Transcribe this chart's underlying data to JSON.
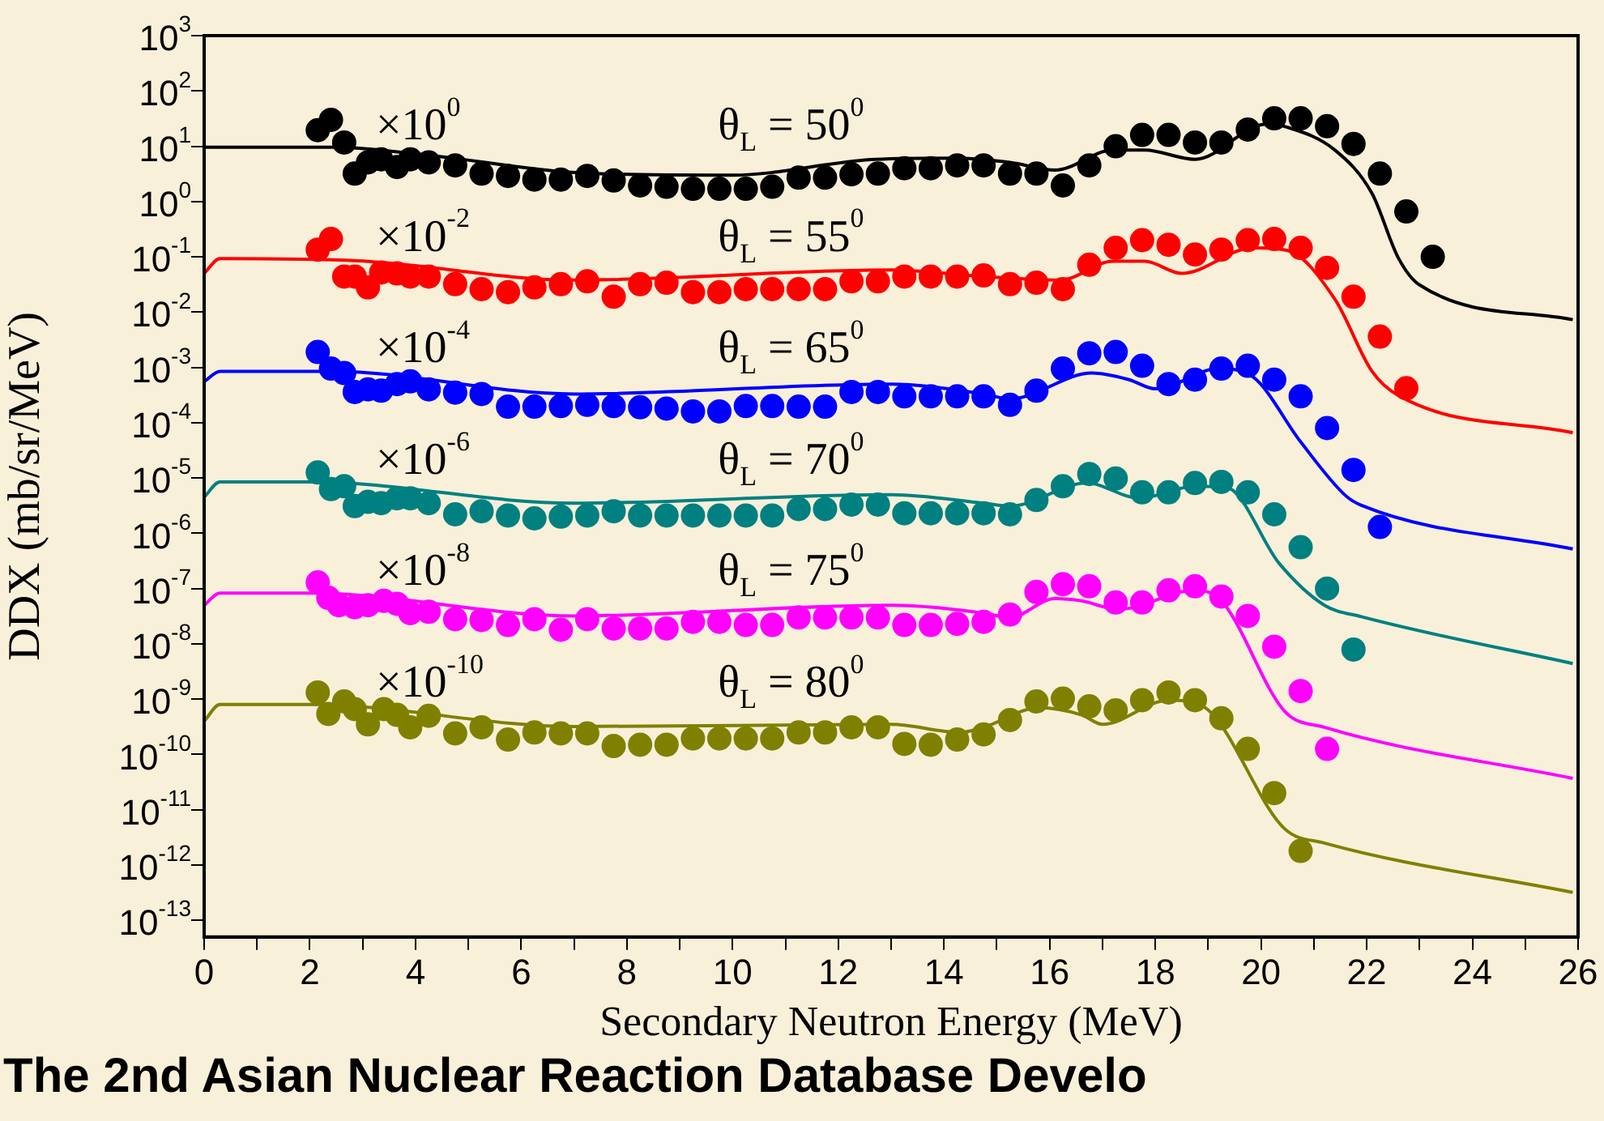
{
  "chart_data": {
    "type": "scatter",
    "xlabel": "Secondary Neutron Energy (MeV)",
    "ylabel": "DDX (mb/sr/MeV)",
    "xlim": [
      0,
      26
    ],
    "xticks": [
      0,
      {
        "value": 1,
        "label": null
      },
      2,
      {
        "value": 3,
        "label": null
      },
      4,
      {
        "value": 5,
        "label": null
      },
      6,
      {
        "value": 7,
        "label": null
      },
      8,
      {
        "value": 9,
        "label": null
      },
      10,
      {
        "value": 11,
        "label": null
      },
      12,
      {
        "value": 13,
        "label": null
      },
      14,
      {
        "value": 15,
        "label": null
      },
      16,
      {
        "value": 17,
        "label": null
      },
      18,
      {
        "value": 19,
        "label": null
      },
      20,
      {
        "value": 21,
        "label": null
      },
      22,
      {
        "value": 23,
        "label": null
      },
      24,
      {
        "value": 25,
        "label": null
      },
      26
    ],
    "ylim": [
      5e-14,
      1000
    ],
    "log": "y",
    "yticks": [
      {
        "value": 1000,
        "label": "10$^{3}$"
      },
      {
        "value": 100,
        "label": "10$^{2}$"
      },
      {
        "value": 10,
        "label": "10$^{1}$"
      },
      {
        "value": 1,
        "label": "10$^{0}$"
      },
      {
        "value": 0.1,
        "label": "10$^{-1}$"
      },
      {
        "value": 0.01,
        "label": "10$^{-2}$"
      },
      {
        "value": 0.001,
        "label": "10$^{-3}$"
      },
      {
        "value": 0.0001,
        "label": "10$^{-4}$"
      },
      {
        "value": 1e-05,
        "label": "10$^{-5}$"
      },
      {
        "value": 1e-06,
        "label": "10$^{-6}$"
      },
      {
        "value": 1e-07,
        "label": "10$^{-7}$"
      },
      {
        "value": 1e-08,
        "label": "10$^{-8}$"
      },
      {
        "value": 1e-09,
        "label": "10$^{-9}$"
      },
      {
        "value": 1e-10,
        "label": "10$^{-10}$"
      },
      {
        "value": 1e-11,
        "label": "10$^{-11}$"
      },
      {
        "value": 1e-12,
        "label": "10$^{-12}$"
      },
      {
        "value": 1e-13,
        "label": "10$^{-13}$"
      }
    ],
    "grid": false,
    "legend": false,
    "marker": "circle",
    "line_style": "solid",
    "series": [
      {
        "type": "line",
        "marker": "none",
        "color": "#000000",
        "x": [
          0,
          2.5,
          3.9,
          7.4,
          10,
          12.7,
          14.2,
          15.25,
          16.1,
          17.2,
          17.8,
          18.75,
          20.1,
          20.5,
          21.4,
          22.1,
          22.6,
          23,
          25.9
        ],
        "values": [
          9.6,
          9.6,
          7.5,
          3.2,
          3.0,
          5.8,
          6.1,
          5.1,
          3.7,
          8.5,
          8.5,
          5.8,
          25,
          22,
          8.5,
          1.4,
          0.095,
          0.031,
          0.0073
        ]
      },
      {
        "type": "line",
        "marker": "none",
        "color": "#ff0000",
        "x": [
          0,
          0.3,
          2.9,
          7.0,
          13.0,
          14.75,
          16.2,
          17.2,
          17.8,
          18.5,
          19.85,
          20.5,
          21.4,
          22.1,
          22.6,
          25.9
        ],
        "values": [
          0.05,
          0.093,
          0.085,
          0.038,
          0.058,
          0.044,
          0.038,
          0.083,
          0.083,
          0.05,
          0.145,
          0.13,
          0.017,
          0.00085,
          0.00031,
          6.6e-05
        ]
      },
      {
        "type": "line",
        "marker": "none",
        "color": "#0000ff",
        "x": [
          0,
          0.3,
          2.4,
          7.0,
          13.0,
          14.75,
          15.25,
          16.8,
          17.5,
          18.0,
          19.2,
          19.85,
          20.75,
          21.6,
          21.9,
          25.9
        ],
        "values": [
          0.00055,
          0.00085,
          0.00085,
          0.00033,
          0.0005,
          0.00033,
          0.00027,
          0.00079,
          0.0006,
          0.00041,
          0.00095,
          0.00067,
          4.5e-05,
          4.8e-06,
          3.2e-06,
          5.2e-07
        ]
      },
      {
        "type": "line",
        "marker": "none",
        "color": "#008080",
        "x": [
          0,
          0.3,
          2.0,
          7.0,
          13.0,
          14.75,
          15.25,
          16.7,
          17.7,
          18.75,
          19.35,
          20.35,
          21.2,
          21.9,
          25.9
        ],
        "values": [
          4.5e-06,
          8.5e-06,
          8.5e-06,
          3.5e-06,
          5e-06,
          3.5e-06,
          3.1e-06,
          8.1e-06,
          4.3e-06,
          7.1e-06,
          6.7e-06,
          2.8e-07,
          5e-08,
          3.1e-08,
          4.4e-09
        ]
      },
      {
        "type": "line",
        "marker": "none",
        "color": "#ff00ff",
        "x": [
          0,
          0.3,
          2.0,
          7.0,
          13.0,
          14.75,
          15.25,
          16.1,
          16.6,
          17.3,
          18.75,
          19.25,
          20.45,
          21.2,
          25.9
        ],
        "values": [
          5e-08,
          8.3e-08,
          8.3e-08,
          3.2e-08,
          5e-08,
          3.6e-08,
          3e-08,
          6.6e-08,
          6e-08,
          4.2e-08,
          9.3e-08,
          6e-08,
          6e-10,
          3.1e-10,
          3.7e-11
        ]
      },
      {
        "type": "line",
        "marker": "none",
        "color": "#808000",
        "x": [
          0,
          0.3,
          2.0,
          7.0,
          13.0,
          14.3,
          14.75,
          15.8,
          16.6,
          17.0,
          18.25,
          18.9,
          20.45,
          21.2,
          25.9
        ],
        "values": [
          4e-10,
          8e-10,
          8e-10,
          3.2e-10,
          3.5e-10,
          2.5e-10,
          3.1e-10,
          7e-10,
          5.2e-10,
          3.5e-10,
          9.6e-10,
          7.4e-10,
          4.5e-12,
          2.5e-12,
          3.2e-13
        ]
      },
      {
        "color": "#000000",
        "x": [
          2.15,
          2.4,
          2.65,
          2.85,
          3.1,
          3.35,
          3.65,
          3.9,
          4.25,
          4.75,
          5.25,
          5.75,
          6.25,
          6.75,
          7.25,
          7.75,
          8.25,
          8.75,
          9.25,
          9.75,
          10.25,
          10.75,
          11.25,
          11.75,
          12.25,
          12.75,
          13.25,
          13.75,
          14.25,
          14.75,
          15.25,
          15.75,
          16.25,
          16.75,
          17.25,
          17.75,
          18.25,
          18.75,
          19.25,
          19.75,
          20.25,
          20.75,
          21.25,
          21.75,
          22.25,
          22.75,
          23.25
        ],
        "values": [
          19.5,
          30,
          11.7,
          3.2,
          5.1,
          5.8,
          4.2,
          5.8,
          5.1,
          4.5,
          3.2,
          2.9,
          2.5,
          2.5,
          2.9,
          2.4,
          1.95,
          1.85,
          1.7,
          1.7,
          1.7,
          1.85,
          2.7,
          2.7,
          3.1,
          3.2,
          4.0,
          4.0,
          4.5,
          4.5,
          3.2,
          3.2,
          1.95,
          4.5,
          10,
          16,
          16,
          11.7,
          11.7,
          20,
          32,
          32,
          23,
          11,
          3.2,
          0.66,
          0.1
        ]
      },
      {
        "color": "#ff0000",
        "x": [
          2.15,
          2.4,
          2.65,
          2.85,
          3.1,
          3.35,
          3.65,
          3.9,
          4.25,
          4.75,
          5.25,
          5.75,
          6.25,
          6.75,
          7.25,
          7.75,
          8.25,
          8.75,
          9.25,
          9.75,
          10.25,
          10.75,
          11.25,
          11.75,
          12.25,
          12.75,
          13.25,
          13.75,
          14.25,
          14.75,
          15.25,
          15.75,
          16.25,
          16.75,
          17.25,
          17.75,
          18.25,
          18.75,
          19.25,
          19.75,
          20.25,
          20.75,
          21.25,
          21.75,
          22.25,
          22.75
        ],
        "values": [
          0.135,
          0.21,
          0.044,
          0.044,
          0.028,
          0.052,
          0.05,
          0.044,
          0.044,
          0.032,
          0.026,
          0.023,
          0.028,
          0.032,
          0.036,
          0.019,
          0.032,
          0.034,
          0.023,
          0.023,
          0.026,
          0.026,
          0.026,
          0.026,
          0.036,
          0.036,
          0.044,
          0.044,
          0.044,
          0.046,
          0.032,
          0.034,
          0.026,
          0.072,
          0.145,
          0.2,
          0.165,
          0.11,
          0.135,
          0.2,
          0.21,
          0.145,
          0.063,
          0.019,
          0.0036,
          0.00042
        ]
      },
      {
        "color": "#0000ff",
        "x": [
          2.15,
          2.4,
          2.65,
          2.85,
          3.1,
          3.35,
          3.65,
          3.9,
          4.25,
          4.75,
          5.25,
          5.75,
          6.25,
          6.75,
          7.25,
          7.75,
          8.25,
          8.75,
          9.25,
          9.75,
          10.25,
          10.75,
          11.25,
          11.75,
          12.25,
          12.75,
          13.25,
          13.75,
          14.25,
          14.75,
          15.25,
          15.75,
          16.25,
          16.75,
          17.25,
          17.75,
          18.25,
          18.75,
          19.25,
          19.75,
          20.25,
          20.75,
          21.25,
          21.75,
          22.25
        ],
        "values": [
          0.0019,
          0.00095,
          0.00079,
          0.00036,
          0.0004,
          0.00038,
          0.0005,
          0.00056,
          0.0004,
          0.00035,
          0.00033,
          0.000195,
          0.000195,
          0.0002,
          0.00021,
          0.0002,
          0.00019,
          0.00018,
          0.00016,
          0.00016,
          0.0002,
          0.0002,
          0.000195,
          0.000195,
          0.00036,
          0.00036,
          0.0003,
          0.0003,
          0.0003,
          0.0003,
          0.00021,
          0.00038,
          0.00095,
          0.0018,
          0.0019,
          0.00107,
          0.0005,
          0.0006,
          0.00095,
          0.00107,
          0.0006,
          0.0003,
          8e-05,
          1.4e-05,
          1.3e-06
        ]
      },
      {
        "color": "#008080",
        "x": [
          2.15,
          2.4,
          2.65,
          2.85,
          3.1,
          3.35,
          3.65,
          3.9,
          4.25,
          4.75,
          5.25,
          5.75,
          6.25,
          6.75,
          7.25,
          7.75,
          8.25,
          8.75,
          9.25,
          9.75,
          10.25,
          10.75,
          11.25,
          11.75,
          12.25,
          12.75,
          13.25,
          13.75,
          14.25,
          14.75,
          15.25,
          15.75,
          16.25,
          16.75,
          17.25,
          17.75,
          18.25,
          18.75,
          19.25,
          19.75,
          20.25,
          20.75,
          21.25,
          21.75
        ],
        "values": [
          1.26e-05,
          6.3e-06,
          7.1e-06,
          3.1e-06,
          3.7e-06,
          3.5e-06,
          4.3e-06,
          4.3e-06,
          3.5e-06,
          2.2e-06,
          2.5e-06,
          2.1e-06,
          1.86e-06,
          2e-06,
          2.1e-06,
          2.5e-06,
          2.1e-06,
          2.1e-06,
          2.1e-06,
          2.1e-06,
          2.1e-06,
          2.1e-06,
          2.75e-06,
          2.75e-06,
          3.3e-06,
          3.3e-06,
          2.3e-06,
          2.3e-06,
          2.3e-06,
          2.3e-06,
          2.2e-06,
          4e-06,
          7.1e-06,
          1.18e-05,
          9.8e-06,
          5.5e-06,
          5.5e-06,
          8.1e-06,
          8.5e-06,
          5.5e-06,
          2.2e-06,
          5.6e-07,
          1e-07,
          7.9e-09
        ]
      },
      {
        "color": "#ff00ff",
        "x": [
          2.15,
          2.35,
          2.55,
          2.85,
          3.1,
          3.4,
          3.65,
          3.9,
          4.25,
          4.75,
          5.25,
          5.75,
          6.25,
          6.75,
          7.25,
          7.75,
          8.25,
          8.75,
          9.25,
          9.75,
          10.25,
          10.75,
          11.25,
          11.75,
          12.25,
          12.75,
          13.25,
          13.75,
          14.25,
          14.75,
          15.25,
          15.75,
          16.25,
          16.75,
          17.25,
          17.75,
          18.25,
          18.75,
          19.25,
          19.75,
          20.25,
          20.75,
          21.25
        ],
        "values": [
          1.29e-07,
          6.8e-08,
          5e-08,
          4.6e-08,
          5e-08,
          6e-08,
          5.3e-08,
          3.6e-08,
          3.8e-08,
          2.8e-08,
          2.7e-08,
          2.2e-08,
          2.8e-08,
          1.8e-08,
          2.8e-08,
          1.9e-08,
          1.9e-08,
          1.9e-08,
          2.5e-08,
          2.5e-08,
          2.2e-08,
          2.2e-08,
          3e-08,
          3e-08,
          3e-08,
          3e-08,
          2.2e-08,
          2.2e-08,
          2.3e-08,
          2.5e-08,
          3.4e-08,
          8.7e-08,
          1.2e-07,
          1.1e-07,
          5.6e-08,
          5.6e-08,
          9.3e-08,
          1.1e-07,
          7.2e-08,
          3.2e-08,
          8.9e-09,
          1.4e-09,
          1.26e-10
        ]
      },
      {
        "color": "#808000",
        "x": [
          2.15,
          2.35,
          2.65,
          2.85,
          3.1,
          3.4,
          3.65,
          3.9,
          4.25,
          4.75,
          5.25,
          5.75,
          6.25,
          6.75,
          7.25,
          7.75,
          8.25,
          8.75,
          9.25,
          9.75,
          10.25,
          10.75,
          11.25,
          11.75,
          12.25,
          12.75,
          13.25,
          13.75,
          14.25,
          14.75,
          15.25,
          15.75,
          16.25,
          16.75,
          17.25,
          17.75,
          18.25,
          18.75,
          19.25,
          19.75,
          20.25,
          20.75
        ],
        "values": [
          1.32e-09,
          5.4e-10,
          9.1e-10,
          6.6e-10,
          3.5e-10,
          6.6e-10,
          5.2e-10,
          3.1e-10,
          5e-10,
          2.4e-10,
          3.1e-10,
          1.86e-10,
          2.5e-10,
          2.4e-10,
          2.4e-10,
          1.42e-10,
          1.5e-10,
          1.5e-10,
          1.95e-10,
          1.95e-10,
          1.95e-10,
          1.95e-10,
          2.5e-10,
          2.5e-10,
          3.1e-10,
          3.1e-10,
          1.55e-10,
          1.5e-10,
          1.86e-10,
          2.3e-10,
          4.2e-10,
          9.1e-10,
          1.02e-09,
          7.4e-10,
          6.3e-10,
          9.6e-10,
          1.32e-09,
          9.6e-10,
          4.5e-10,
          1.26e-10,
          2e-11,
          1.8e-12
        ]
      }
    ],
    "annotations": [
      "×10$^{0}$",
      "θ$_{L}$ = 50$^{0}$",
      "×10$^{-2}$",
      "θ$_{L}$ = 55$^{0}$",
      "×10$^{-4}$",
      "θ$_{L}$ = 65$^{0}$",
      "×10$^{-6}$",
      "θ$_{L}$ = 70$^{0}$",
      "×10$^{-8}$",
      "θ$_{L}$ = 75$^{0}$",
      "×10$^{-10}$",
      "θ$_{L}$ = 80$^{0}$",
      "The 2nd Asian Nuclear Reaction Database Develo"
    ]
  }
}
